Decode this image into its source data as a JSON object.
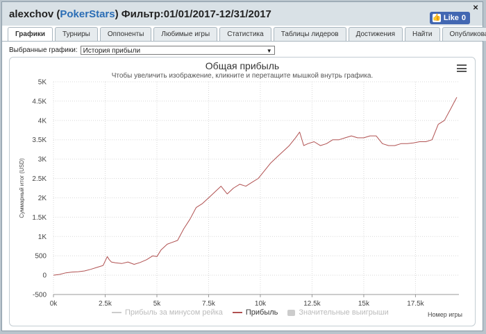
{
  "window": {
    "title_user": "alexchov",
    "title_site": "PokerStars",
    "title_filter": "Фильтр:01/01/2017-12/31/2017",
    "close_symbol": "×",
    "like_label": "Like",
    "like_count": "0"
  },
  "tabs": [
    "Графики",
    "Турниры",
    "Оппоненты",
    "Любимые игры",
    "Статистика",
    "Таблицы лидеров",
    "Достижения",
    "Найти",
    "Опубликовать"
  ],
  "selector": {
    "label": "Выбранные графики:",
    "value": "История прибыли"
  },
  "chart_data": {
    "type": "line",
    "title": "Общая прибыль",
    "subtitle": "Чтобы увеличить изображение, кликните и перетащите мышкой внутрь графика.",
    "xlabel": "Номер игры",
    "ylabel": "Суммарный итог (USD)",
    "xlim": [
      0,
      19600
    ],
    "ylim": [
      -500,
      5000
    ],
    "x_ticks": [
      0,
      2500,
      5000,
      7500,
      10000,
      12500,
      15000,
      17500
    ],
    "x_tick_labels": [
      "0k",
      "2.5k",
      "5k",
      "7.5k",
      "10k",
      "12.5k",
      "15k",
      "17.5k"
    ],
    "y_ticks": [
      -500,
      0,
      500,
      1000,
      1500,
      2000,
      2500,
      3000,
      3500,
      4000,
      4500,
      5000
    ],
    "y_tick_labels": [
      "-500",
      "0",
      "500",
      "1K",
      "1.5K",
      "2K",
      "2.5K",
      "3K",
      "3.5K",
      "4K",
      "4.5K",
      "5K"
    ],
    "grid": true,
    "legend_position": "bottom",
    "legend": [
      {
        "name": "Прибыль за минусом рейка",
        "color": "#cccccc",
        "style": "line",
        "active": false
      },
      {
        "name": "Прибыль",
        "color": "#b05050",
        "style": "line",
        "active": true
      },
      {
        "name": "Значительные выигрыши",
        "color": "#cccccc",
        "style": "box",
        "active": false
      }
    ],
    "series": [
      {
        "name": "Прибыль",
        "color": "#b05050",
        "x": [
          0,
          300,
          600,
          900,
          1200,
          1500,
          1800,
          2100,
          2400,
          2600,
          2700,
          2800,
          3000,
          3300,
          3600,
          3900,
          4200,
          4500,
          4800,
          5000,
          5200,
          5500,
          5700,
          6000,
          6300,
          6600,
          6900,
          7200,
          7500,
          7800,
          8100,
          8400,
          8700,
          9000,
          9300,
          9600,
          9900,
          10200,
          10500,
          10800,
          11100,
          11400,
          11700,
          11900,
          12100,
          12300,
          12600,
          12900,
          13200,
          13500,
          13800,
          14100,
          14400,
          14700,
          15000,
          15300,
          15600,
          15900,
          16200,
          16500,
          16800,
          17100,
          17400,
          17700,
          18000,
          18300,
          18600,
          18900,
          19200,
          19400,
          19500
        ],
        "y": [
          0,
          20,
          60,
          80,
          90,
          110,
          150,
          200,
          250,
          480,
          400,
          340,
          320,
          300,
          340,
          280,
          330,
          400,
          500,
          480,
          650,
          800,
          840,
          900,
          1200,
          1450,
          1750,
          1850,
          2000,
          2150,
          2300,
          2100,
          2250,
          2350,
          2300,
          2400,
          2500,
          2700,
          2900,
          3050,
          3200,
          3350,
          3550,
          3700,
          3350,
          3400,
          3450,
          3350,
          3400,
          3500,
          3500,
          3550,
          3600,
          3550,
          3550,
          3600,
          3600,
          3400,
          3350,
          3350,
          3400,
          3400,
          3420,
          3450,
          3450,
          3500,
          3900,
          4000,
          4300,
          4500,
          4600
        ]
      }
    ]
  }
}
